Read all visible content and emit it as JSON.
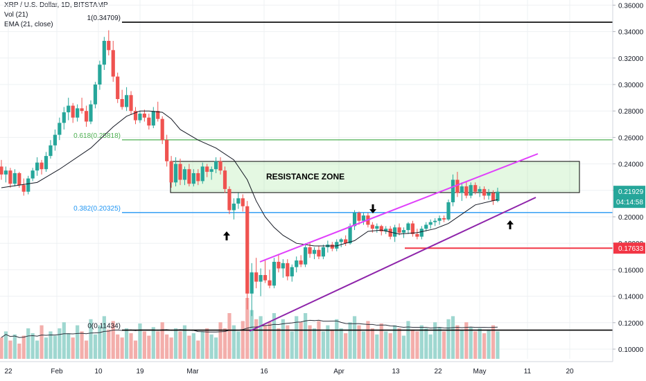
{
  "header": {
    "symbol": "XRP / U.S. Dollar, 1D, BITSTAMP",
    "vol": "Vol (21)",
    "ema": "EMA (21, close)"
  },
  "chart_data": {
    "type": "candlestick",
    "y_axis": {
      "range": [
        0.09,
        0.37
      ],
      "ticks": [
        "0.10000",
        "0.12000",
        "0.14000",
        "0.16000",
        "0.18000",
        "0.20000",
        "0.22000",
        "0.24000",
        "0.26000",
        "0.28000",
        "0.30000",
        "0.32000",
        "0.34000",
        "0.36000"
      ]
    },
    "x_axis": {
      "ticks": [
        "22",
        "Feb",
        "10",
        "19",
        "Mar",
        "16",
        "Apr",
        "13",
        "22",
        "May",
        "11",
        "20"
      ]
    },
    "price_labels": {
      "current": "0.21929",
      "countdown": "04:14:58",
      "red_level": "0.17633"
    },
    "fib_levels": [
      {
        "label": "1(0.34709)",
        "value": 0.34709
      },
      {
        "label": "0.618(0.25818)",
        "value": 0.25818
      },
      {
        "label": "0.382(0.20325)",
        "value": 0.20325
      },
      {
        "label": "0(0.11434)",
        "value": 0.11434
      }
    ],
    "annotations": {
      "resistance_zone": "RESISTANCE ZONE"
    },
    "candles": [
      {
        "o": 0.238,
        "h": 0.243,
        "l": 0.228,
        "c": 0.232
      },
      {
        "o": 0.232,
        "h": 0.238,
        "l": 0.226,
        "c": 0.235
      },
      {
        "o": 0.235,
        "h": 0.237,
        "l": 0.222,
        "c": 0.225
      },
      {
        "o": 0.225,
        "h": 0.236,
        "l": 0.223,
        "c": 0.233
      },
      {
        "o": 0.233,
        "h": 0.234,
        "l": 0.222,
        "c": 0.224
      },
      {
        "o": 0.224,
        "h": 0.229,
        "l": 0.216,
        "c": 0.219
      },
      {
        "o": 0.219,
        "h": 0.231,
        "l": 0.217,
        "c": 0.229
      },
      {
        "o": 0.229,
        "h": 0.237,
        "l": 0.227,
        "c": 0.235
      },
      {
        "o": 0.235,
        "h": 0.245,
        "l": 0.231,
        "c": 0.241
      },
      {
        "o": 0.241,
        "h": 0.243,
        "l": 0.232,
        "c": 0.236
      },
      {
        "o": 0.236,
        "h": 0.249,
        "l": 0.234,
        "c": 0.246
      },
      {
        "o": 0.246,
        "h": 0.258,
        "l": 0.244,
        "c": 0.254
      },
      {
        "o": 0.254,
        "h": 0.266,
        "l": 0.25,
        "c": 0.262
      },
      {
        "o": 0.262,
        "h": 0.275,
        "l": 0.258,
        "c": 0.271
      },
      {
        "o": 0.271,
        "h": 0.283,
        "l": 0.266,
        "c": 0.279
      },
      {
        "o": 0.279,
        "h": 0.29,
        "l": 0.273,
        "c": 0.284
      },
      {
        "o": 0.284,
        "h": 0.286,
        "l": 0.271,
        "c": 0.275
      },
      {
        "o": 0.275,
        "h": 0.285,
        "l": 0.272,
        "c": 0.282
      },
      {
        "o": 0.282,
        "h": 0.29,
        "l": 0.278,
        "c": 0.28
      },
      {
        "o": 0.28,
        "h": 0.284,
        "l": 0.268,
        "c": 0.272
      },
      {
        "o": 0.272,
        "h": 0.288,
        "l": 0.27,
        "c": 0.285
      },
      {
        "o": 0.285,
        "h": 0.302,
        "l": 0.282,
        "c": 0.3
      },
      {
        "o": 0.3,
        "h": 0.318,
        "l": 0.296,
        "c": 0.315
      },
      {
        "o": 0.315,
        "h": 0.336,
        "l": 0.311,
        "c": 0.333
      },
      {
        "o": 0.333,
        "h": 0.341,
        "l": 0.322,
        "c": 0.326
      },
      {
        "o": 0.326,
        "h": 0.333,
        "l": 0.302,
        "c": 0.306
      },
      {
        "o": 0.306,
        "h": 0.309,
        "l": 0.286,
        "c": 0.289
      },
      {
        "o": 0.289,
        "h": 0.296,
        "l": 0.281,
        "c": 0.283
      },
      {
        "o": 0.283,
        "h": 0.298,
        "l": 0.28,
        "c": 0.292
      },
      {
        "o": 0.292,
        "h": 0.295,
        "l": 0.277,
        "c": 0.28
      },
      {
        "o": 0.28,
        "h": 0.283,
        "l": 0.27,
        "c": 0.273
      },
      {
        "o": 0.273,
        "h": 0.28,
        "l": 0.271,
        "c": 0.278
      },
      {
        "o": 0.278,
        "h": 0.281,
        "l": 0.272,
        "c": 0.275
      },
      {
        "o": 0.275,
        "h": 0.278,
        "l": 0.266,
        "c": 0.269
      },
      {
        "o": 0.269,
        "h": 0.283,
        "l": 0.267,
        "c": 0.28
      },
      {
        "o": 0.28,
        "h": 0.287,
        "l": 0.272,
        "c": 0.274
      },
      {
        "o": 0.274,
        "h": 0.276,
        "l": 0.255,
        "c": 0.258
      },
      {
        "o": 0.258,
        "h": 0.262,
        "l": 0.238,
        "c": 0.242
      },
      {
        "o": 0.242,
        "h": 0.246,
        "l": 0.222,
        "c": 0.226
      },
      {
        "o": 0.226,
        "h": 0.245,
        "l": 0.223,
        "c": 0.24
      },
      {
        "o": 0.24,
        "h": 0.244,
        "l": 0.224,
        "c": 0.228
      },
      {
        "o": 0.228,
        "h": 0.238,
        "l": 0.224,
        "c": 0.236
      },
      {
        "o": 0.236,
        "h": 0.24,
        "l": 0.223,
        "c": 0.225
      },
      {
        "o": 0.225,
        "h": 0.236,
        "l": 0.223,
        "c": 0.233
      },
      {
        "o": 0.233,
        "h": 0.236,
        "l": 0.224,
        "c": 0.227
      },
      {
        "o": 0.227,
        "h": 0.241,
        "l": 0.225,
        "c": 0.238
      },
      {
        "o": 0.238,
        "h": 0.24,
        "l": 0.23,
        "c": 0.234
      },
      {
        "o": 0.234,
        "h": 0.238,
        "l": 0.228,
        "c": 0.236
      },
      {
        "o": 0.236,
        "h": 0.245,
        "l": 0.233,
        "c": 0.242
      },
      {
        "o": 0.242,
        "h": 0.245,
        "l": 0.232,
        "c": 0.235
      },
      {
        "o": 0.235,
        "h": 0.238,
        "l": 0.218,
        "c": 0.221
      },
      {
        "o": 0.221,
        "h": 0.223,
        "l": 0.202,
        "c": 0.205
      },
      {
        "o": 0.205,
        "h": 0.214,
        "l": 0.198,
        "c": 0.21
      },
      {
        "o": 0.21,
        "h": 0.218,
        "l": 0.206,
        "c": 0.214
      },
      {
        "o": 0.214,
        "h": 0.217,
        "l": 0.204,
        "c": 0.208
      },
      {
        "o": 0.208,
        "h": 0.212,
        "l": 0.13,
        "c": 0.142
      },
      {
        "o": 0.142,
        "h": 0.165,
        "l": 0.125,
        "c": 0.158
      },
      {
        "o": 0.158,
        "h": 0.169,
        "l": 0.146,
        "c": 0.151
      },
      {
        "o": 0.151,
        "h": 0.161,
        "l": 0.14,
        "c": 0.156
      },
      {
        "o": 0.156,
        "h": 0.167,
        "l": 0.15,
        "c": 0.152
      },
      {
        "o": 0.152,
        "h": 0.16,
        "l": 0.146,
        "c": 0.148
      },
      {
        "o": 0.148,
        "h": 0.169,
        "l": 0.146,
        "c": 0.166
      },
      {
        "o": 0.166,
        "h": 0.172,
        "l": 0.158,
        "c": 0.161
      },
      {
        "o": 0.161,
        "h": 0.168,
        "l": 0.154,
        "c": 0.165
      },
      {
        "o": 0.165,
        "h": 0.168,
        "l": 0.152,
        "c": 0.155
      },
      {
        "o": 0.155,
        "h": 0.164,
        "l": 0.151,
        "c": 0.162
      },
      {
        "o": 0.162,
        "h": 0.17,
        "l": 0.158,
        "c": 0.167
      },
      {
        "o": 0.167,
        "h": 0.171,
        "l": 0.162,
        "c": 0.164
      },
      {
        "o": 0.164,
        "h": 0.18,
        "l": 0.162,
        "c": 0.177
      },
      {
        "o": 0.177,
        "h": 0.181,
        "l": 0.169,
        "c": 0.172
      },
      {
        "o": 0.172,
        "h": 0.177,
        "l": 0.168,
        "c": 0.175
      },
      {
        "o": 0.175,
        "h": 0.178,
        "l": 0.168,
        "c": 0.17
      },
      {
        "o": 0.17,
        "h": 0.179,
        "l": 0.168,
        "c": 0.177
      },
      {
        "o": 0.177,
        "h": 0.182,
        "l": 0.173,
        "c": 0.179
      },
      {
        "o": 0.179,
        "h": 0.181,
        "l": 0.174,
        "c": 0.176
      },
      {
        "o": 0.176,
        "h": 0.183,
        "l": 0.174,
        "c": 0.181
      },
      {
        "o": 0.181,
        "h": 0.184,
        "l": 0.177,
        "c": 0.183
      },
      {
        "o": 0.183,
        "h": 0.186,
        "l": 0.178,
        "c": 0.18
      },
      {
        "o": 0.18,
        "h": 0.195,
        "l": 0.179,
        "c": 0.193
      },
      {
        "o": 0.193,
        "h": 0.205,
        "l": 0.19,
        "c": 0.203
      },
      {
        "o": 0.203,
        "h": 0.204,
        "l": 0.194,
        "c": 0.197
      },
      {
        "o": 0.197,
        "h": 0.203,
        "l": 0.194,
        "c": 0.201
      },
      {
        "o": 0.201,
        "h": 0.203,
        "l": 0.192,
        "c": 0.194
      },
      {
        "o": 0.194,
        "h": 0.196,
        "l": 0.188,
        "c": 0.191
      },
      {
        "o": 0.191,
        "h": 0.195,
        "l": 0.188,
        "c": 0.193
      },
      {
        "o": 0.193,
        "h": 0.194,
        "l": 0.186,
        "c": 0.189
      },
      {
        "o": 0.189,
        "h": 0.193,
        "l": 0.187,
        "c": 0.191
      },
      {
        "o": 0.191,
        "h": 0.193,
        "l": 0.183,
        "c": 0.185
      },
      {
        "o": 0.185,
        "h": 0.194,
        "l": 0.181,
        "c": 0.192
      },
      {
        "o": 0.192,
        "h": 0.195,
        "l": 0.186,
        "c": 0.188
      },
      {
        "o": 0.188,
        "h": 0.192,
        "l": 0.184,
        "c": 0.19
      },
      {
        "o": 0.19,
        "h": 0.196,
        "l": 0.187,
        "c": 0.195
      },
      {
        "o": 0.195,
        "h": 0.197,
        "l": 0.185,
        "c": 0.187
      },
      {
        "o": 0.187,
        "h": 0.191,
        "l": 0.183,
        "c": 0.185
      },
      {
        "o": 0.185,
        "h": 0.193,
        "l": 0.183,
        "c": 0.191
      },
      {
        "o": 0.191,
        "h": 0.196,
        "l": 0.189,
        "c": 0.194
      },
      {
        "o": 0.194,
        "h": 0.198,
        "l": 0.191,
        "c": 0.196
      },
      {
        "o": 0.196,
        "h": 0.199,
        "l": 0.193,
        "c": 0.197
      },
      {
        "o": 0.197,
        "h": 0.201,
        "l": 0.194,
        "c": 0.199
      },
      {
        "o": 0.199,
        "h": 0.201,
        "l": 0.196,
        "c": 0.198
      },
      {
        "o": 0.198,
        "h": 0.213,
        "l": 0.197,
        "c": 0.211
      },
      {
        "o": 0.211,
        "h": 0.232,
        "l": 0.208,
        "c": 0.228
      },
      {
        "o": 0.228,
        "h": 0.234,
        "l": 0.215,
        "c": 0.218
      },
      {
        "o": 0.218,
        "h": 0.226,
        "l": 0.212,
        "c": 0.223
      },
      {
        "o": 0.223,
        "h": 0.227,
        "l": 0.214,
        "c": 0.216
      },
      {
        "o": 0.216,
        "h": 0.226,
        "l": 0.214,
        "c": 0.224
      },
      {
        "o": 0.224,
        "h": 0.226,
        "l": 0.217,
        "c": 0.219
      },
      {
        "o": 0.219,
        "h": 0.223,
        "l": 0.215,
        "c": 0.221
      },
      {
        "o": 0.221,
        "h": 0.223,
        "l": 0.213,
        "c": 0.216
      },
      {
        "o": 0.216,
        "h": 0.221,
        "l": 0.213,
        "c": 0.218
      },
      {
        "o": 0.218,
        "h": 0.22,
        "l": 0.209,
        "c": 0.212
      },
      {
        "o": 0.212,
        "h": 0.222,
        "l": 0.211,
        "c": 0.219
      }
    ],
    "ema21": [
      [
        0,
        0.222
      ],
      [
        8,
        0.226
      ],
      [
        13,
        0.236
      ],
      [
        20,
        0.252
      ],
      [
        25,
        0.268
      ],
      [
        28,
        0.276
      ],
      [
        31,
        0.28
      ],
      [
        33,
        0.28
      ],
      [
        36,
        0.279
      ],
      [
        38,
        0.274
      ],
      [
        40,
        0.266
      ],
      [
        44,
        0.258
      ],
      [
        48,
        0.252
      ],
      [
        52,
        0.243
      ],
      [
        55,
        0.228
      ],
      [
        57,
        0.212
      ],
      [
        59,
        0.2
      ],
      [
        61,
        0.192
      ],
      [
        63,
        0.186
      ],
      [
        66,
        0.18
      ],
      [
        70,
        0.178
      ],
      [
        75,
        0.178
      ],
      [
        79,
        0.182
      ],
      [
        82,
        0.189
      ],
      [
        85,
        0.19
      ],
      [
        89,
        0.187
      ],
      [
        93,
        0.188
      ],
      [
        97,
        0.191
      ],
      [
        100,
        0.195
      ],
      [
        103,
        0.202
      ],
      [
        106,
        0.209
      ],
      [
        111,
        0.213
      ]
    ],
    "volumes": [
      0.35,
      0.45,
      0.3,
      0.4,
      0.25,
      0.38,
      0.5,
      0.42,
      0.3,
      0.55,
      0.35,
      0.45,
      0.38,
      0.5,
      0.6,
      0.42,
      0.35,
      0.55,
      0.45,
      0.3,
      0.65,
      0.4,
      0.55,
      0.7,
      0.48,
      0.62,
      0.4,
      0.35,
      0.5,
      0.42,
      0.3,
      0.58,
      0.45,
      0.38,
      0.52,
      0.45,
      0.6,
      0.4,
      0.35,
      0.5,
      0.45,
      0.55,
      0.38,
      0.42,
      0.3,
      0.45,
      0.5,
      0.4,
      0.35,
      0.6,
      0.5,
      0.75,
      0.55,
      0.45,
      0.62,
      1.0,
      0.8,
      0.65,
      0.7,
      0.55,
      0.6,
      0.75,
      0.5,
      0.65,
      0.55,
      0.45,
      0.7,
      0.6,
      0.75,
      0.55,
      0.5,
      0.62,
      0.45,
      0.55,
      0.48,
      0.65,
      0.5,
      0.42,
      0.6,
      0.7,
      0.55,
      0.45,
      0.62,
      0.5,
      0.4,
      0.58,
      0.45,
      0.42,
      0.55,
      0.5,
      0.38,
      0.62,
      0.48,
      0.45,
      0.55,
      0.5,
      0.4,
      0.6,
      0.52,
      0.45,
      0.65,
      0.7,
      0.55,
      0.48,
      0.6,
      0.52,
      0.45,
      0.5,
      0.42,
      0.48,
      0.55,
      0.45
    ]
  }
}
